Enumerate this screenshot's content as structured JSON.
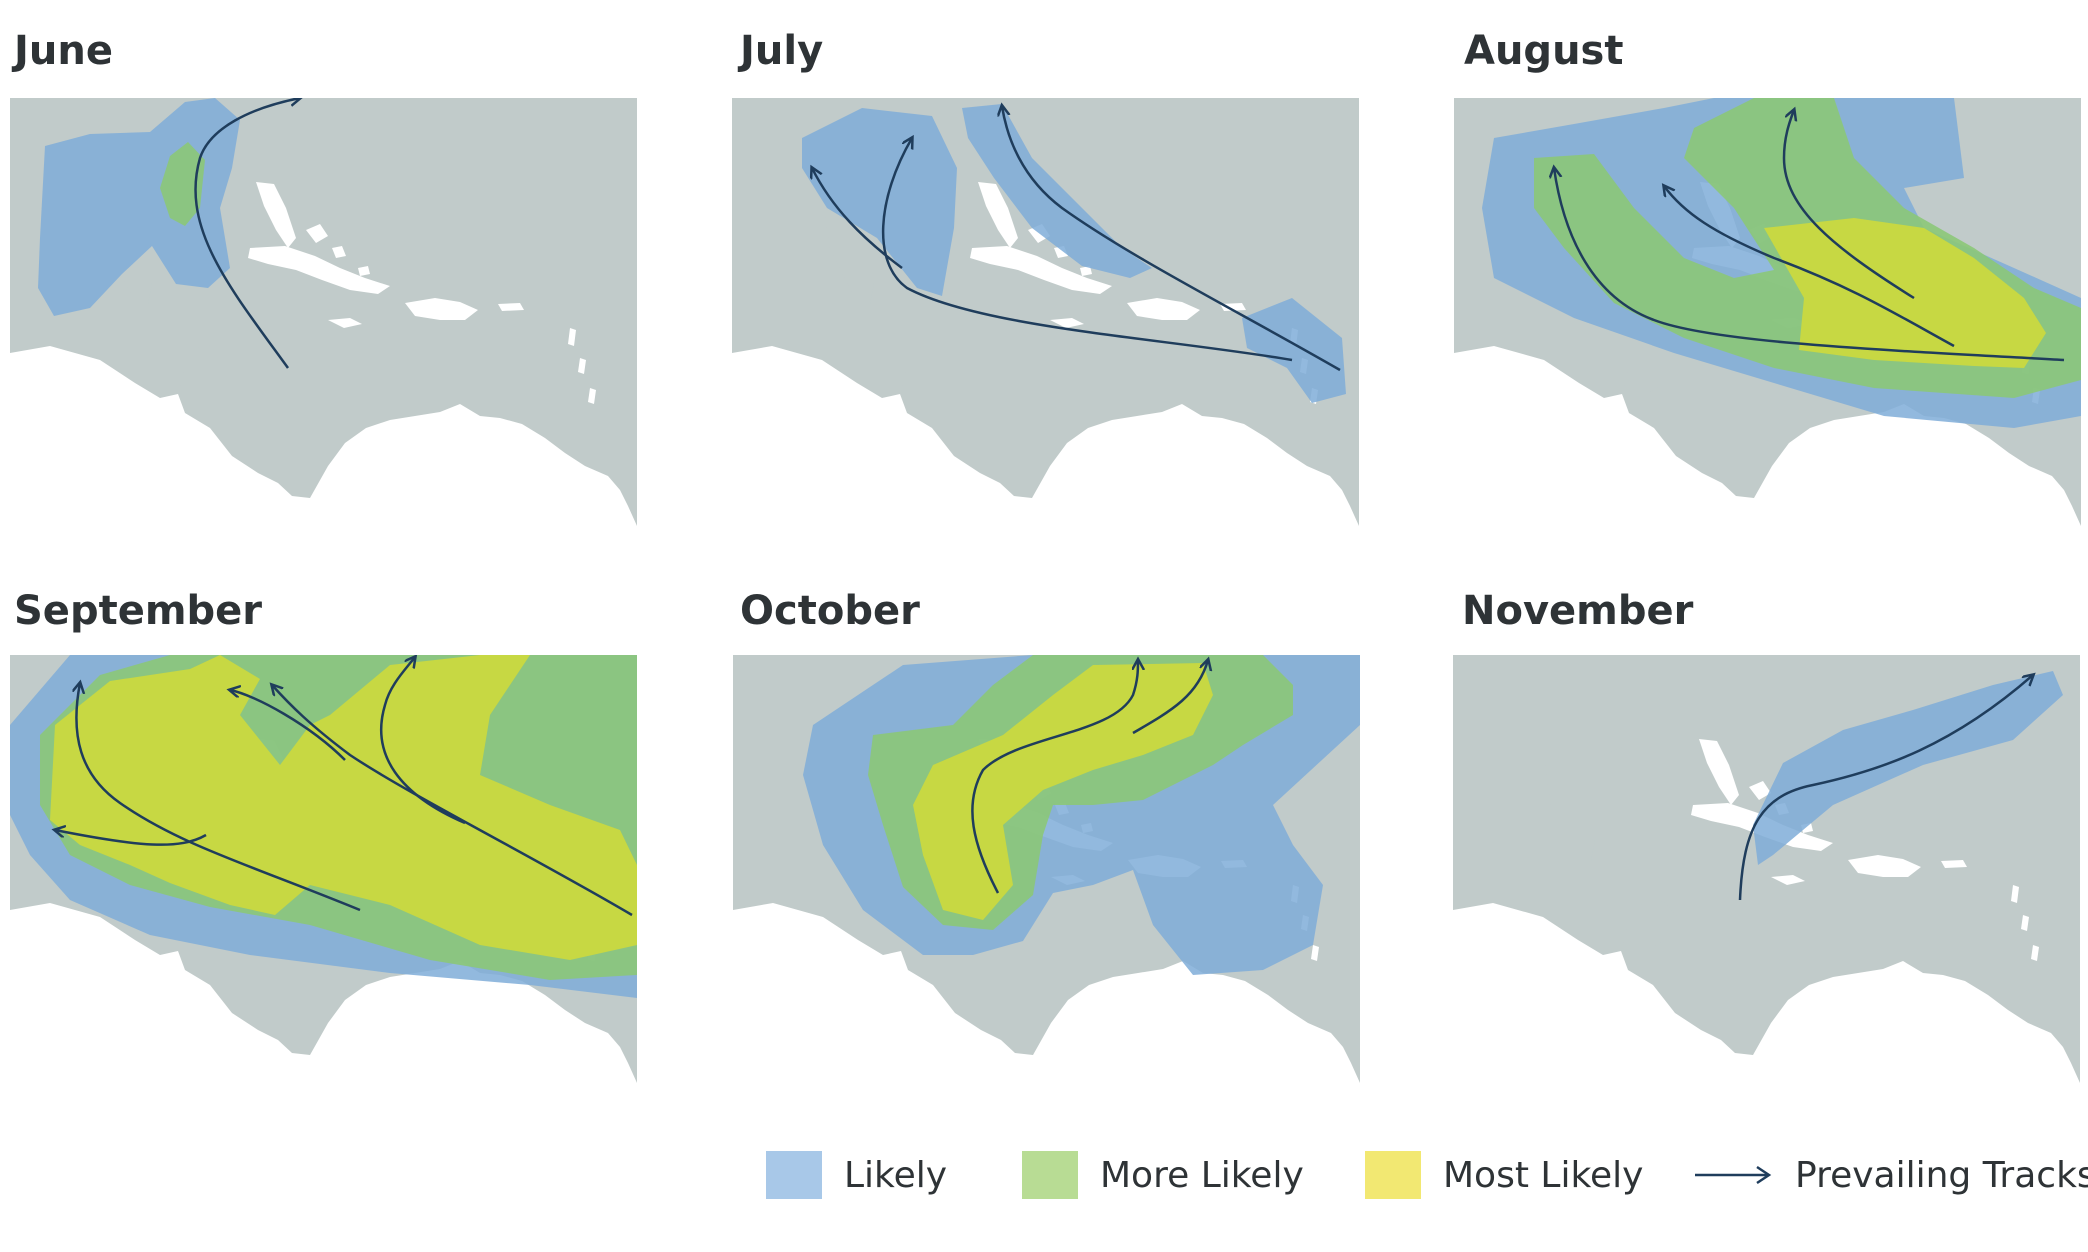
{
  "panels": [
    {
      "title": "June"
    },
    {
      "title": "July"
    },
    {
      "title": "August"
    },
    {
      "title": "September"
    },
    {
      "title": "October"
    },
    {
      "title": "November"
    }
  ],
  "legend": {
    "likely": {
      "label": "Likely",
      "color": "#a8c8e8"
    },
    "more_likely": {
      "label": "More Likely",
      "color": "#b8dc94"
    },
    "most_likely": {
      "label": "Most Likely",
      "color": "#f2e872"
    },
    "tracks": {
      "label": "Prevailing Tracks",
      "color": "#1f3d5c"
    }
  },
  "colors": {
    "ocean": "#c1cbca",
    "land": "#ffffff",
    "likely_overlay": "#7fadd8",
    "more_likely_overlay": "#8cc878",
    "most_likely_overlay": "#cdd93c"
  }
}
